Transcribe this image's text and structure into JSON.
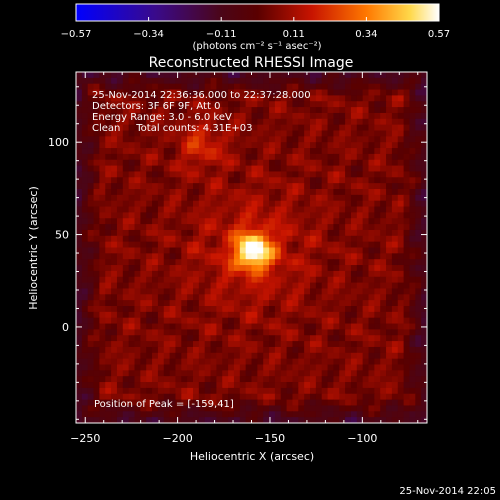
{
  "colorbar": {
    "ticks": [
      "-0.57",
      "-0.34",
      "-0.11",
      "0.11",
      "0.34",
      "0.57"
    ],
    "units_label": "(photons cm⁻² s⁻¹ asec⁻²)"
  },
  "chart_data": {
    "type": "heatmap",
    "title": "Reconstructed RHESSI Image",
    "xlabel": "Heliocentric X (arcsec)",
    "ylabel": "Heliocentric Y (arcsec)",
    "xlim": [
      -255,
      -65
    ],
    "ylim": [
      -52,
      138
    ],
    "x_ticks": [
      -250,
      -200,
      -150,
      -100
    ],
    "y_ticks": [
      0,
      50,
      100
    ],
    "clim": [
      -0.57,
      0.57
    ],
    "colormap": "rainbow-hot",
    "peak": {
      "x": -159,
      "y": 41,
      "value": 0.57
    },
    "secondary_source": {
      "x": -187,
      "y": 98,
      "value": 0.2
    },
    "annotations": [
      "25-Nov-2014 22:36:36.000 to 22:37:28.000",
      "Detectors: 3F 6F 9F, Att 0",
      "Energy Range: 3.0 - 6.0 keV",
      "Clean     Total counts: 4.31E+03"
    ],
    "peak_label": "Position of Peak = [-159,41]"
  },
  "footer": {
    "timestamp": "25-Nov-2014 22:05"
  }
}
